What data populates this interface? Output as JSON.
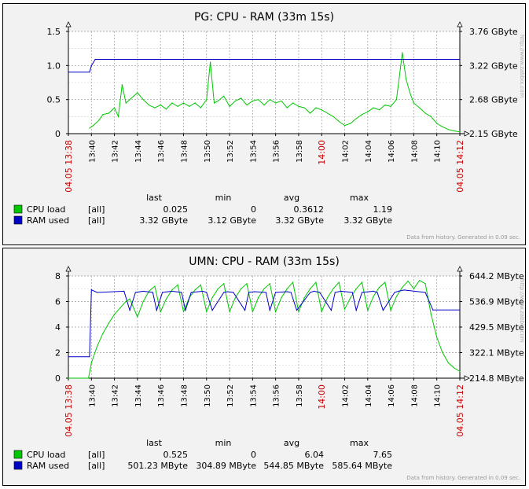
{
  "charts": [
    {
      "title": "PG: CPU - RAM (33m 15s)",
      "left_axis": {
        "ticks": [
          "0",
          "0.5",
          "1.0",
          "1.5"
        ],
        "min": 0,
        "max": 1.5
      },
      "right_axis": {
        "ticks": [
          "2.15 GByte",
          "2.68 GByte",
          "3.22 GByte",
          "3.76 GByte"
        ]
      },
      "x_labels": [
        "13:40",
        "13:42",
        "13:44",
        "13:46",
        "13:48",
        "13:50",
        "13:52",
        "13:54",
        "13:56",
        "13:58",
        "14:00",
        "14:02",
        "14:04",
        "14:06",
        "14:08",
        "14:10"
      ],
      "x_red_labels": [
        "04.05 13:38",
        "14:00",
        "04.05 14:12"
      ],
      "legend_header": [
        "last",
        "min",
        "avg",
        "max"
      ],
      "legend_rows": [
        {
          "name": "CPU load",
          "func": "[all]",
          "last": "0.025",
          "min": "0",
          "avg": "0.3612",
          "max": "1.19",
          "color": "#00c800"
        },
        {
          "name": "RAM used",
          "func": "[all]",
          "last": "3.32 GByte",
          "min": "3.12 GByte",
          "avg": "3.32 GByte",
          "max": "3.32 GByte",
          "color": "#0000c8"
        }
      ],
      "footer": "Data from history. Generated in 0.09 sec.",
      "watermark": "http://www.zabbix.com",
      "colors": {
        "cpu": "#00c800",
        "ram": "#0000c8",
        "trigger": "#c80000"
      }
    },
    {
      "title": "UMN: CPU - RAM (33m 15s)",
      "left_axis": {
        "ticks": [
          "0",
          "2",
          "4",
          "6",
          "8"
        ],
        "min": 0,
        "max": 8
      },
      "right_axis": {
        "ticks": [
          "214.8 MByte",
          "322.1 MByte",
          "429.5 MByte",
          "536.9 MByte",
          "644.2 MByte"
        ]
      },
      "x_labels": [
        "13:40",
        "13:42",
        "13:44",
        "13:46",
        "13:48",
        "13:50",
        "13:52",
        "13:54",
        "13:56",
        "13:58",
        "14:00",
        "14:02",
        "14:04",
        "14:06",
        "14:08",
        "14:10"
      ],
      "x_red_labels": [
        "04.05 13:38",
        "14:00",
        "04.05 14:12"
      ],
      "legend_header": [
        "last",
        "min",
        "avg",
        "max"
      ],
      "legend_rows": [
        {
          "name": "CPU load",
          "func": "[all]",
          "last": "0.525",
          "min": "0",
          "avg": "6.04",
          "max": "7.65",
          "color": "#00c800"
        },
        {
          "name": "RAM used",
          "func": "[all]",
          "last": "501.23 MByte",
          "min": "304.89 MByte",
          "avg": "544.85 MByte",
          "max": "585.64 MByte",
          "color": "#0000c8"
        }
      ],
      "footer": "Data from history. Generated in 0.09 sec.",
      "watermark": "http://www.zabbix.com",
      "colors": {
        "cpu": "#00c800",
        "ram": "#0000c8",
        "trigger": "#c80000"
      }
    }
  ],
  "chart_data": [
    {
      "type": "line",
      "title": "PG: CPU - RAM (33m 15s)",
      "x_unit": "minute",
      "x_start": "13:38",
      "x_end": "14:12",
      "series": [
        {
          "name": "CPU load",
          "axis": "left",
          "x": [
            "13:39:50",
            "13:40:10",
            "13:40:40",
            "13:41:00",
            "13:41:30",
            "13:42:00",
            "13:42:20",
            "13:42:40",
            "13:43:00",
            "13:43:20",
            "13:43:40",
            "13:44:00",
            "13:44:30",
            "13:45:00",
            "13:45:30",
            "13:46:00",
            "13:46:30",
            "13:47:00",
            "13:47:30",
            "13:48:00",
            "13:48:30",
            "13:49:00",
            "13:49:30",
            "13:50:00",
            "13:50:20",
            "13:50:40",
            "13:51:00",
            "13:51:30",
            "13:52:00",
            "13:52:30",
            "13:53:00",
            "13:53:30",
            "13:54:00",
            "13:54:30",
            "13:55:00",
            "13:55:30",
            "13:56:00",
            "13:56:30",
            "13:57:00",
            "13:57:30",
            "13:58:00",
            "13:58:30",
            "13:59:00",
            "13:59:30",
            "14:00:00",
            "14:00:30",
            "14:01:00",
            "14:01:30",
            "14:02:00",
            "14:02:30",
            "14:03:00",
            "14:03:30",
            "14:04:00",
            "14:04:30",
            "14:05:00",
            "14:05:30",
            "14:06:00",
            "14:06:30",
            "14:06:50",
            "14:07:00",
            "14:07:20",
            "14:07:40",
            "14:08:00",
            "14:08:30",
            "14:09:00",
            "14:09:30",
            "14:10:00",
            "14:10:30",
            "14:11:00",
            "14:11:30",
            "14:12:00"
          ],
          "values": [
            0.08,
            0.12,
            0.2,
            0.28,
            0.3,
            0.38,
            0.25,
            0.72,
            0.45,
            0.5,
            0.55,
            0.6,
            0.5,
            0.42,
            0.38,
            0.42,
            0.36,
            0.45,
            0.4,
            0.45,
            0.4,
            0.45,
            0.38,
            0.5,
            1.05,
            0.45,
            0.48,
            0.55,
            0.4,
            0.48,
            0.52,
            0.42,
            0.48,
            0.5,
            0.42,
            0.5,
            0.45,
            0.48,
            0.38,
            0.45,
            0.4,
            0.38,
            0.3,
            0.38,
            0.35,
            0.3,
            0.25,
            0.18,
            0.12,
            0.15,
            0.22,
            0.28,
            0.32,
            0.38,
            0.35,
            0.42,
            0.4,
            0.5,
            0.95,
            1.19,
            0.8,
            0.6,
            0.45,
            0.38,
            0.3,
            0.25,
            0.15,
            0.1,
            0.06,
            0.04,
            0.025
          ]
        },
        {
          "name": "RAM used",
          "axis": "right",
          "unit": "GByte",
          "x": [
            "13:38:00",
            "13:39:50",
            "13:40:00",
            "13:40:20",
            "14:12:00"
          ],
          "values": [
            3.12,
            3.12,
            3.22,
            3.32,
            3.32
          ]
        }
      ],
      "ylim_left": [
        0,
        1.5
      ],
      "ylim_right": [
        "2.15 GByte",
        "3.76 GByte"
      ],
      "grid": true,
      "legend_position": "bottom"
    },
    {
      "type": "line",
      "title": "UMN: CPU - RAM (33m 15s)",
      "x_unit": "minute",
      "x_start": "13:38",
      "x_end": "14:12",
      "series": [
        {
          "name": "CPU load",
          "axis": "left",
          "x": [
            "13:38:00",
            "13:39:45",
            "13:40:00",
            "13:40:30",
            "13:41:00",
            "13:41:30",
            "13:42:00",
            "13:42:30",
            "13:43:00",
            "13:43:20",
            "13:44:00",
            "13:44:30",
            "13:45:00",
            "13:45:30",
            "13:46:00",
            "13:46:30",
            "13:47:00",
            "13:47:30",
            "13:48:00",
            "13:48:30",
            "13:49:00",
            "13:49:30",
            "13:50:00",
            "13:50:30",
            "13:51:00",
            "13:51:30",
            "13:52:00",
            "13:52:30",
            "13:53:00",
            "13:53:30",
            "13:54:00",
            "13:54:30",
            "13:55:00",
            "13:55:30",
            "13:56:00",
            "13:56:30",
            "13:57:00",
            "13:57:30",
            "13:58:00",
            "13:58:30",
            "13:59:00",
            "13:59:30",
            "14:00:00",
            "14:00:30",
            "14:01:00",
            "14:01:30",
            "14:02:00",
            "14:02:30",
            "14:03:00",
            "14:03:30",
            "14:04:00",
            "14:04:30",
            "14:05:00",
            "14:05:30",
            "14:06:00",
            "14:06:30",
            "14:07:00",
            "14:07:30",
            "14:08:00",
            "14:08:30",
            "14:09:00",
            "14:09:30",
            "14:10:00",
            "14:10:30",
            "14:11:00",
            "14:11:30",
            "14:12:00"
          ],
          "values": [
            0,
            0,
            1.2,
            2.5,
            3.5,
            4.3,
            5.0,
            5.5,
            6.0,
            6.2,
            4.8,
            6.0,
            6.8,
            7.2,
            5.2,
            6.2,
            6.9,
            7.3,
            5.2,
            6.3,
            6.9,
            7.3,
            5.2,
            6.3,
            7.0,
            7.4,
            5.2,
            6.3,
            7.0,
            7.4,
            5.2,
            6.3,
            7.0,
            7.4,
            5.2,
            6.3,
            7.0,
            7.5,
            5.2,
            6.3,
            7.0,
            7.5,
            5.2,
            6.3,
            7.0,
            7.5,
            5.4,
            6.3,
            7.0,
            7.5,
            5.3,
            6.4,
            7.1,
            7.5,
            5.3,
            6.4,
            7.1,
            7.6,
            7.0,
            7.65,
            7.4,
            5.0,
            3.2,
            2.0,
            1.2,
            0.8,
            0.525
          ]
        },
        {
          "name": "RAM used",
          "axis": "right",
          "unit": "MByte",
          "x": [
            "13:38:00",
            "13:39:50",
            "13:40:00",
            "13:40:30",
            "13:42:50",
            "13:43:20",
            "13:43:50",
            "13:44:30",
            "13:45:20",
            "13:45:40",
            "13:46:10",
            "13:47:00",
            "13:47:50",
            "13:48:10",
            "13:48:40",
            "13:49:40",
            "13:50:00",
            "13:50:30",
            "13:51:30",
            "13:51:50",
            "13:52:20",
            "13:53:20",
            "13:53:40",
            "13:54:10",
            "13:55:10",
            "13:55:30",
            "13:56:00",
            "13:57:00",
            "13:57:20",
            "13:57:50",
            "13:59:00",
            "13:59:20",
            "13:59:50",
            "14:00:50",
            "14:01:10",
            "14:01:40",
            "14:02:40",
            "14:03:00",
            "14:03:30",
            "14:04:30",
            "14:04:50",
            "14:05:20",
            "14:06:20",
            "14:06:40",
            "14:07:10",
            "14:09:00",
            "14:09:40",
            "14:12:00"
          ],
          "values": [
            304.89,
            304.89,
            585.64,
            575,
            580,
            500,
            575,
            580,
            575,
            500,
            575,
            580,
            575,
            500,
            575,
            580,
            575,
            500,
            575,
            578,
            575,
            500,
            575,
            578,
            575,
            500,
            575,
            578,
            575,
            500,
            575,
            580,
            575,
            500,
            575,
            580,
            575,
            500,
            575,
            580,
            575,
            500,
            575,
            580,
            585,
            575,
            501.23,
            501.23
          ]
        }
      ],
      "ylim_left": [
        0,
        8
      ],
      "ylim_right": [
        "214.8 MByte",
        "644.2 MByte"
      ],
      "grid": true,
      "legend_position": "bottom"
    }
  ]
}
